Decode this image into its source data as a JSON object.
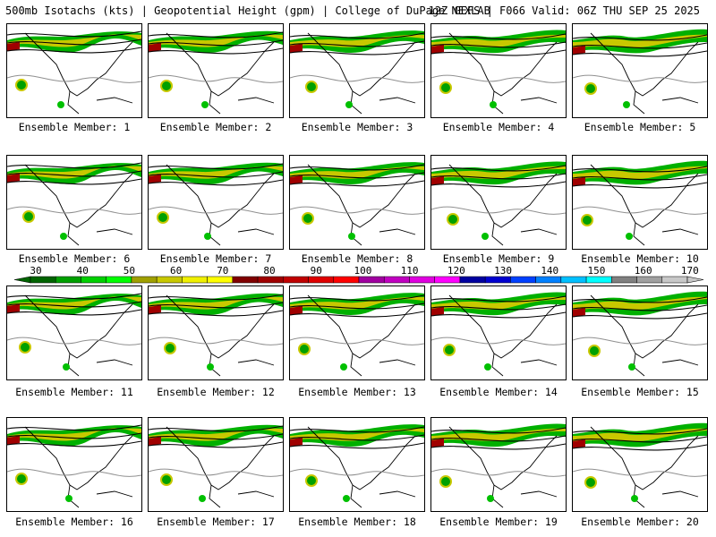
{
  "header": {
    "title": "500mb Isotachs (kts) | Geopotential Height (gpm) | College of DuPage NEXLAB",
    "run_info": "12Z GEFS | F066 Valid: 06Z THU SEP 25 2025"
  },
  "members": [
    "Ensemble Member: 1",
    "Ensemble Member: 2",
    "Ensemble Member: 3",
    "Ensemble Member: 4",
    "Ensemble Member: 5",
    "Ensemble Member: 6",
    "Ensemble Member: 7",
    "Ensemble Member: 8",
    "Ensemble Member: 9",
    "Ensemble Member: 10",
    "Ensemble Member: 11",
    "Ensemble Member: 12",
    "Ensemble Member: 13",
    "Ensemble Member: 14",
    "Ensemble Member: 15",
    "Ensemble Member: 16",
    "Ensemble Member: 17",
    "Ensemble Member: 18",
    "Ensemble Member: 19",
    "Ensemble Member: 20"
  ],
  "colorbar": {
    "labels": [
      "30",
      "40",
      "50",
      "60",
      "70",
      "80",
      "90",
      "100",
      "110",
      "120",
      "130",
      "140",
      "150",
      "160",
      "170"
    ],
    "colors": [
      "#006400",
      "#00a000",
      "#00d000",
      "#00ff00",
      "#a0a000",
      "#c8c800",
      "#f0f000",
      "#ffff00",
      "#800000",
      "#a00000",
      "#c00000",
      "#e00000",
      "#ff0000",
      "#a000a0",
      "#c000c0",
      "#e000e0",
      "#ff00ff",
      "#0000a0",
      "#0000d0",
      "#0040ff",
      "#0080ff",
      "#00c0ff",
      "#00ffff",
      "#808080",
      "#a0a0a0",
      "#c8c8c8"
    ]
  }
}
